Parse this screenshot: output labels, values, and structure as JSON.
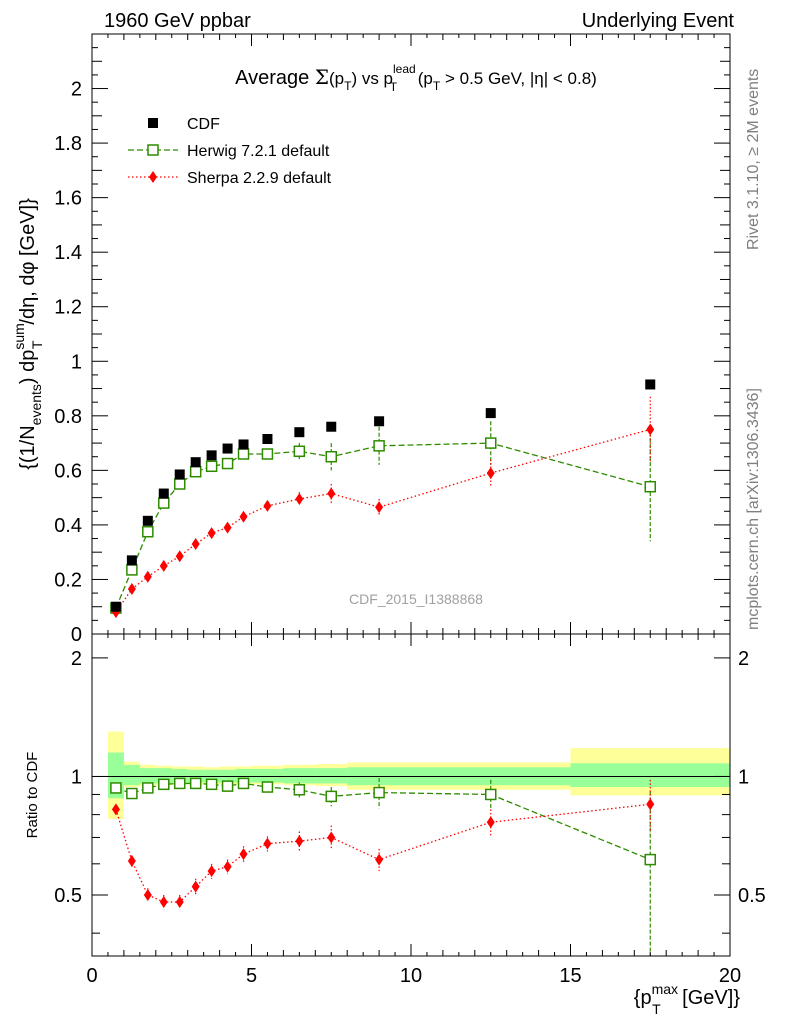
{
  "header": {
    "left": "1960 GeV ppbar",
    "right": "Underlying Event"
  },
  "sidebar": {
    "rivet": "Rivet 3.1.10, ≥ 2M events",
    "mcplots": "mcplots.cern.ch [arXiv:1306.3436]"
  },
  "chart_data": [
    {
      "type": "scatter",
      "panel": "main",
      "title": "Average Σ(pT) vs pT lead (pT > 0.5 GeV, |η| < 0.8)",
      "title_parts": {
        "avg": "Average ",
        "sigma": "Σ",
        "pt1": "(p",
        "pt1_sub": "T",
        "vs": ") vs p",
        "lead_sup": "lead",
        "lead_sub": "T",
        "cut": " (p",
        "cut_sub": "T",
        "cut_rest": " > 0.5 GeV, |η| < 0.8)"
      },
      "ylabel": "{(1/Nevents) dpTsum/dη, dφ [GeV]}",
      "ylabel_parts": {
        "a": "{(1/N",
        "a_sub": "events",
        "b": ") dp",
        "b_sup": "sum",
        "b_sub": "T",
        "c": "/dη, dφ [GeV]}"
      },
      "watermark": "CDF_2015_I1388868",
      "xlim": [
        0,
        20
      ],
      "ylim": [
        0,
        2.2
      ],
      "x_ticks": [
        0,
        5,
        10,
        15,
        20
      ],
      "y_ticks": [
        0,
        0.2,
        0.4,
        0.6,
        0.8,
        1,
        1.2,
        1.4,
        1.6,
        1.8,
        2
      ],
      "y_tick_labels": [
        "0",
        "0.2",
        "0.4",
        "0.6",
        "0.8",
        "1",
        "1.2",
        "1.4",
        "1.6",
        "1.8",
        "2"
      ],
      "legend": "top-left",
      "series": [
        {
          "name": "CDF",
          "color": "#000000",
          "marker": "filled-square",
          "line": "none",
          "x": [
            0.75,
            1.25,
            1.75,
            2.25,
            2.75,
            3.25,
            3.75,
            4.25,
            4.75,
            5.5,
            6.5,
            7.5,
            9.0,
            12.5,
            17.5
          ],
          "y": [
            0.1,
            0.27,
            0.415,
            0.515,
            0.585,
            0.63,
            0.655,
            0.68,
            0.695,
            0.715,
            0.74,
            0.76,
            0.78,
            0.81,
            0.915
          ]
        },
        {
          "name": "Herwig 7.2.1 default",
          "color": "#2e8b00",
          "marker": "open-square",
          "line": "dashed",
          "x": [
            0.75,
            1.25,
            1.75,
            2.25,
            2.75,
            3.25,
            3.75,
            4.25,
            4.75,
            5.5,
            6.5,
            7.5,
            9.0,
            12.5,
            17.5
          ],
          "y": [
            0.095,
            0.235,
            0.375,
            0.48,
            0.55,
            0.595,
            0.615,
            0.625,
            0.66,
            0.66,
            0.67,
            0.65,
            0.69,
            0.7,
            0.54
          ],
          "err": [
            0.005,
            0.01,
            0.01,
            0.01,
            0.012,
            0.012,
            0.012,
            0.015,
            0.015,
            0.018,
            0.03,
            0.05,
            0.07,
            0.08,
            0.2
          ]
        },
        {
          "name": "Sherpa 2.2.9 default",
          "color": "#ff0000",
          "marker": "diamond",
          "line": "dotted",
          "x": [
            0.75,
            1.25,
            1.75,
            2.25,
            2.75,
            3.25,
            3.75,
            4.25,
            4.75,
            5.5,
            6.5,
            7.5,
            9.0,
            12.5,
            17.5
          ],
          "y": [
            0.08,
            0.165,
            0.21,
            0.25,
            0.285,
            0.33,
            0.37,
            0.39,
            0.43,
            0.47,
            0.495,
            0.515,
            0.465,
            0.59,
            0.75
          ],
          "err": [
            0.005,
            0.006,
            0.006,
            0.007,
            0.008,
            0.01,
            0.01,
            0.012,
            0.015,
            0.015,
            0.025,
            0.035,
            0.03,
            0.05,
            0.12
          ]
        }
      ]
    },
    {
      "type": "scatter",
      "panel": "ratio",
      "ylabel": "Ratio to CDF",
      "xlabel": "{pTmax [GeV]}",
      "xlabel_parts": {
        "a": "{p",
        "sup": "max",
        "sub": "T",
        "b": " [GeV]}"
      },
      "xlim": [
        0,
        20
      ],
      "ylim": [
        0.35,
        2.3
      ],
      "y_scale": "log",
      "x_ticks": [
        0,
        5,
        10,
        15,
        20
      ],
      "x_tick_labels": [
        "0",
        "5",
        "10",
        "15",
        "20"
      ],
      "y_ticks": [
        0.5,
        1,
        2
      ],
      "y_tick_labels": [
        "0.5",
        "1",
        "2"
      ],
      "bands": {
        "bins": [
          [
            0.5,
            1.0
          ],
          [
            1.0,
            1.5
          ],
          [
            1.5,
            2.0
          ],
          [
            2.0,
            2.5
          ],
          [
            2.5,
            3.0
          ],
          [
            3.0,
            3.5
          ],
          [
            3.5,
            4.0
          ],
          [
            4.0,
            4.5
          ],
          [
            4.5,
            5.0
          ],
          [
            5.0,
            6.0
          ],
          [
            6.0,
            7.0
          ],
          [
            7.0,
            8.0
          ],
          [
            8.0,
            10.0
          ],
          [
            10.0,
            15.0
          ],
          [
            15.0,
            20.0
          ]
        ],
        "stat_lo": [
          0.88,
          0.95,
          0.96,
          0.96,
          0.965,
          0.965,
          0.965,
          0.965,
          0.965,
          0.965,
          0.96,
          0.96,
          0.95,
          0.95,
          0.94
        ],
        "stat_hi": [
          1.15,
          1.07,
          1.05,
          1.05,
          1.045,
          1.04,
          1.04,
          1.04,
          1.045,
          1.045,
          1.05,
          1.05,
          1.055,
          1.055,
          1.08
        ],
        "tot_lo": [
          0.78,
          0.94,
          0.95,
          0.95,
          0.955,
          0.955,
          0.955,
          0.955,
          0.955,
          0.955,
          0.95,
          0.945,
          0.925,
          0.925,
          0.895
        ],
        "tot_hi": [
          1.3,
          1.09,
          1.07,
          1.065,
          1.06,
          1.06,
          1.055,
          1.06,
          1.06,
          1.065,
          1.07,
          1.075,
          1.085,
          1.085,
          1.18
        ],
        "stat_color": "#99ff99",
        "tot_color": "#ffff99"
      },
      "series": [
        {
          "name": "Herwig 7.2.1 default",
          "color": "#2e8b00",
          "marker": "open-square",
          "line": "dashed",
          "x": [
            0.75,
            1.25,
            1.75,
            2.25,
            2.75,
            3.25,
            3.75,
            4.25,
            4.75,
            5.5,
            6.5,
            7.5,
            9.0,
            12.5,
            17.5
          ],
          "y": [
            0.935,
            0.905,
            0.935,
            0.955,
            0.96,
            0.96,
            0.955,
            0.945,
            0.96,
            0.94,
            0.925,
            0.89,
            0.91,
            0.9,
            0.615
          ],
          "err": [
            0.01,
            0.015,
            0.015,
            0.015,
            0.015,
            0.015,
            0.015,
            0.02,
            0.02,
            0.02,
            0.04,
            0.05,
            0.08,
            0.08,
            0.3
          ]
        },
        {
          "name": "Sherpa 2.2.9 default",
          "color": "#ff0000",
          "marker": "diamond",
          "line": "dotted",
          "x": [
            0.75,
            1.25,
            1.75,
            2.25,
            2.75,
            3.25,
            3.75,
            4.25,
            4.75,
            5.5,
            6.5,
            7.5,
            9.0,
            12.5,
            17.5
          ],
          "y": [
            0.825,
            0.61,
            0.5,
            0.48,
            0.48,
            0.525,
            0.575,
            0.59,
            0.635,
            0.675,
            0.685,
            0.7,
            0.615,
            0.765,
            0.85
          ],
          "err": [
            0.02,
            0.02,
            0.02,
            0.02,
            0.02,
            0.025,
            0.025,
            0.025,
            0.03,
            0.03,
            0.04,
            0.05,
            0.04,
            0.06,
            0.13
          ]
        }
      ]
    }
  ]
}
